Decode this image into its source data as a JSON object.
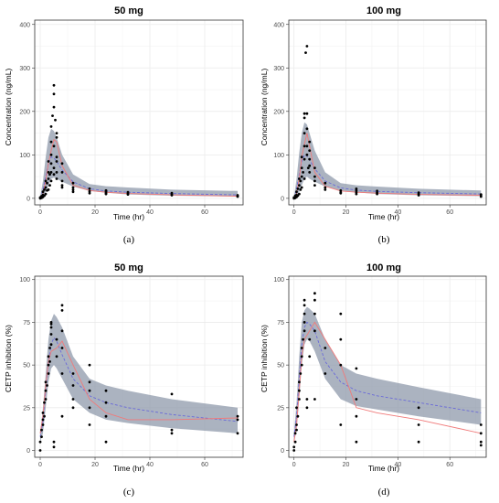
{
  "colors": {
    "band": "#8f9aab",
    "observed_line": "#f07a7a",
    "median_line": "#6a6ad8",
    "points": "#000000",
    "grid": "#ebebeb",
    "panel_border": "#333333"
  },
  "chart_data": [
    {
      "type": "scatter",
      "title": "50 mg",
      "caption": "(a)",
      "xlabel": "Time (hr)",
      "ylabel": "Concentration (ng/mL)",
      "xlim": [
        -2,
        74
      ],
      "ylim": [
        -15,
        410
      ],
      "xticks": [
        0,
        20,
        40,
        60
      ],
      "yticks": [
        0,
        100,
        200,
        300,
        400
      ],
      "grid": true,
      "series": [
        {
          "kind": "band",
          "x": [
            0,
            1,
            2,
            3,
            4,
            5,
            6,
            8,
            12,
            18,
            24,
            32,
            48,
            72
          ],
          "lower": [
            0,
            5,
            15,
            30,
            45,
            48,
            45,
            38,
            27,
            17,
            13,
            9,
            6,
            4
          ],
          "upper": [
            3,
            40,
            95,
            140,
            160,
            155,
            140,
            100,
            55,
            33,
            28,
            25,
            20,
            17
          ]
        },
        {
          "kind": "median",
          "x": [
            0,
            1,
            2,
            3,
            4,
            5,
            6,
            8,
            12,
            18,
            24,
            32,
            48,
            72
          ],
          "y": [
            1,
            20,
            50,
            80,
            95,
            93,
            85,
            65,
            38,
            22,
            17,
            14,
            11,
            8
          ]
        },
        {
          "kind": "observed",
          "x": [
            0,
            1,
            2,
            3,
            4,
            5,
            6,
            8,
            12,
            18,
            24,
            32,
            48,
            72
          ],
          "y": [
            1,
            10,
            40,
            80,
            110,
            135,
            130,
            75,
            30,
            18,
            14,
            11,
            8,
            5
          ]
        },
        {
          "kind": "points",
          "x": [
            0,
            0,
            0.5,
            0.5,
            1,
            1,
            1,
            1.5,
            1.5,
            2,
            2,
            2,
            2.5,
            2.5,
            3,
            3,
            3,
            3,
            3.5,
            3.5,
            4,
            4,
            4,
            4,
            4,
            4,
            4.5,
            5,
            5,
            5,
            5,
            5,
            5,
            5.5,
            6,
            6,
            6,
            6,
            6,
            6,
            8,
            8,
            8,
            8,
            8,
            12,
            12,
            12,
            12,
            18,
            18,
            18,
            24,
            24,
            24,
            24,
            32,
            32,
            32,
            48,
            48,
            48,
            72,
            72,
            72
          ],
          "y": [
            0,
            2,
            1,
            5,
            3,
            8,
            15,
            6,
            20,
            10,
            25,
            40,
            18,
            35,
            20,
            45,
            60,
            85,
            30,
            55,
            40,
            60,
            80,
            100,
            130,
            165,
            190,
            210,
            260,
            240,
            120,
            70,
            55,
            180,
            150,
            140,
            95,
            85,
            60,
            45,
            80,
            60,
            40,
            30,
            25,
            35,
            25,
            20,
            15,
            22,
            16,
            12,
            18,
            15,
            12,
            10,
            14,
            11,
            9,
            12,
            9,
            7,
            7,
            5,
            4
          ]
        }
      ]
    },
    {
      "type": "scatter",
      "title": "100 mg",
      "caption": "(b)",
      "xlabel": "Time (hr)",
      "ylabel": "Concentration (ng/mL)",
      "xlim": [
        -2,
        74
      ],
      "ylim": [
        -15,
        410
      ],
      "xticks": [
        0,
        20,
        40,
        60
      ],
      "yticks": [
        0,
        100,
        200,
        300,
        400
      ],
      "grid": true,
      "series": [
        {
          "kind": "band",
          "x": [
            0,
            1,
            2,
            3,
            4,
            5,
            6,
            8,
            12,
            18,
            24,
            32,
            48,
            72
          ],
          "lower": [
            0,
            5,
            15,
            30,
            45,
            50,
            45,
            38,
            27,
            18,
            14,
            10,
            7,
            5
          ],
          "upper": [
            3,
            45,
            105,
            150,
            175,
            170,
            150,
            110,
            60,
            35,
            30,
            27,
            22,
            18
          ]
        },
        {
          "kind": "median",
          "x": [
            0,
            1,
            2,
            3,
            4,
            5,
            6,
            8,
            12,
            18,
            24,
            32,
            48,
            72
          ],
          "y": [
            1,
            22,
            55,
            85,
            100,
            98,
            88,
            68,
            40,
            24,
            19,
            16,
            13,
            10
          ]
        },
        {
          "kind": "observed",
          "x": [
            0,
            1,
            2,
            3,
            4,
            5,
            6,
            8,
            12,
            18,
            24,
            32,
            48,
            72
          ],
          "y": [
            1,
            10,
            45,
            95,
            125,
            150,
            120,
            60,
            28,
            17,
            14,
            12,
            9,
            7
          ]
        },
        {
          "kind": "points",
          "x": [
            0,
            0,
            0.5,
            0.5,
            1,
            1,
            1,
            1.5,
            1.5,
            2,
            2,
            2,
            2.5,
            2.5,
            3,
            3,
            3,
            3,
            3.5,
            4,
            4,
            4,
            4,
            4,
            4,
            4.5,
            5,
            5,
            5,
            5,
            5,
            5.5,
            6,
            6,
            6,
            6,
            6,
            8,
            8,
            8,
            8,
            12,
            12,
            12,
            18,
            18,
            18,
            24,
            24,
            24,
            24,
            32,
            32,
            32,
            48,
            48,
            48,
            72,
            72,
            72
          ],
          "y": [
            0,
            2,
            1,
            6,
            3,
            8,
            15,
            6,
            22,
            10,
            30,
            45,
            20,
            40,
            25,
            50,
            70,
            95,
            60,
            45,
            90,
            120,
            150,
            185,
            195,
            335,
            350,
            195,
            160,
            120,
            100,
            70,
            130,
            110,
            90,
            75,
            60,
            70,
            50,
            40,
            30,
            35,
            25,
            20,
            18,
            14,
            12,
            22,
            18,
            14,
            10,
            17,
            13,
            10,
            13,
            10,
            7,
            9,
            6,
            4
          ]
        }
      ]
    },
    {
      "type": "scatter",
      "title": "50 mg",
      "caption": "(c)",
      "xlabel": "Time (hr)",
      "ylabel": "CETP inhibition (%)",
      "xlim": [
        -2,
        74
      ],
      "ylim": [
        -4,
        102
      ],
      "xticks": [
        0,
        20,
        40,
        60
      ],
      "yticks": [
        0,
        25,
        50,
        75,
        100
      ],
      "grid": true,
      "series": [
        {
          "kind": "band",
          "x": [
            0,
            1,
            2,
            3,
            4,
            5,
            6,
            8,
            12,
            18,
            24,
            32,
            48,
            72
          ],
          "lower": [
            5,
            10,
            25,
            40,
            48,
            50,
            48,
            42,
            30,
            22,
            18,
            16,
            13,
            10
          ],
          "upper": [
            10,
            25,
            45,
            65,
            76,
            80,
            78,
            72,
            55,
            42,
            38,
            35,
            30,
            25
          ]
        },
        {
          "kind": "median",
          "x": [
            0,
            1,
            2,
            3,
            4,
            5,
            6,
            8,
            12,
            18,
            24,
            32,
            48,
            72
          ],
          "y": [
            8,
            17,
            35,
            52,
            62,
            66,
            64,
            56,
            42,
            32,
            28,
            25,
            21,
            17
          ]
        },
        {
          "kind": "observed",
          "x": [
            0,
            1,
            2,
            3,
            4,
            6,
            8,
            12,
            18,
            24,
            32,
            48,
            72
          ],
          "y": [
            10,
            20,
            38,
            52,
            58,
            60,
            64,
            50,
            30,
            22,
            18,
            18,
            19
          ]
        },
        {
          "kind": "points",
          "x": [
            0,
            0,
            0.5,
            0.5,
            1,
            1,
            1,
            1.5,
            1.5,
            2,
            2,
            2,
            2.5,
            3,
            3,
            3,
            3.5,
            3.5,
            4,
            4,
            4,
            4,
            4,
            5,
            5,
            6,
            6,
            8,
            8,
            8,
            8,
            8,
            8,
            12,
            12,
            12,
            12,
            18,
            18,
            18,
            18,
            18,
            24,
            24,
            24,
            24,
            48,
            48,
            48,
            72,
            72,
            72
          ],
          "y": [
            0,
            5,
            8,
            12,
            15,
            18,
            22,
            20,
            28,
            30,
            35,
            40,
            38,
            45,
            50,
            55,
            60,
            52,
            62,
            68,
            72,
            74,
            75,
            5,
            2,
            55,
            65,
            85,
            82,
            70,
            60,
            45,
            20,
            45,
            38,
            30,
            25,
            50,
            40,
            35,
            25,
            15,
            35,
            28,
            20,
            5,
            33,
            12,
            10,
            20,
            18,
            10
          ]
        }
      ]
    },
    {
      "type": "scatter",
      "title": "100 mg",
      "caption": "(d)",
      "xlabel": "Time (hr)",
      "ylabel": "CETP inhibition (%)",
      "xlim": [
        -2,
        74
      ],
      "ylim": [
        -4,
        102
      ],
      "xticks": [
        0,
        20,
        40,
        60
      ],
      "yticks": [
        0,
        25,
        50,
        75,
        100
      ],
      "grid": true,
      "series": [
        {
          "kind": "band",
          "x": [
            0,
            1,
            2,
            3,
            4,
            5,
            6,
            8,
            12,
            18,
            24,
            32,
            48,
            72
          ],
          "lower": [
            5,
            12,
            30,
            50,
            62,
            65,
            64,
            58,
            42,
            30,
            26,
            24,
            20,
            15
          ],
          "upper": [
            10,
            28,
            55,
            75,
            82,
            84,
            83,
            80,
            65,
            50,
            45,
            42,
            37,
            30
          ]
        },
        {
          "kind": "median",
          "x": [
            0,
            1,
            2,
            3,
            4,
            5,
            6,
            8,
            12,
            18,
            24,
            32,
            48,
            72
          ],
          "y": [
            8,
            20,
            42,
            62,
            72,
            75,
            74,
            70,
            52,
            40,
            35,
            32,
            28,
            22
          ]
        },
        {
          "kind": "observed",
          "x": [
            0,
            1,
            2,
            3,
            4,
            6,
            8,
            12,
            18,
            24,
            32,
            48,
            72
          ],
          "y": [
            5,
            15,
            35,
            55,
            65,
            70,
            75,
            65,
            50,
            25,
            22,
            18,
            10
          ]
        },
        {
          "kind": "points",
          "x": [
            0,
            0,
            0.5,
            0.5,
            1,
            1,
            1,
            1.5,
            2,
            2,
            2,
            2.5,
            3,
            3,
            3,
            3.5,
            4,
            4,
            4,
            4,
            4,
            5,
            5,
            6,
            6,
            8,
            8,
            8,
            8,
            8,
            12,
            12,
            18,
            18,
            18,
            18,
            24,
            24,
            24,
            24,
            48,
            48,
            48,
            72,
            72,
            72,
            72
          ],
          "y": [
            0,
            2,
            5,
            10,
            12,
            15,
            25,
            20,
            30,
            35,
            40,
            45,
            50,
            55,
            60,
            65,
            70,
            75,
            80,
            85,
            88,
            30,
            25,
            55,
            65,
            92,
            88,
            80,
            70,
            30,
            60,
            45,
            80,
            65,
            50,
            15,
            48,
            30,
            20,
            5,
            25,
            15,
            5,
            15,
            10,
            5,
            3
          ]
        }
      ]
    }
  ]
}
